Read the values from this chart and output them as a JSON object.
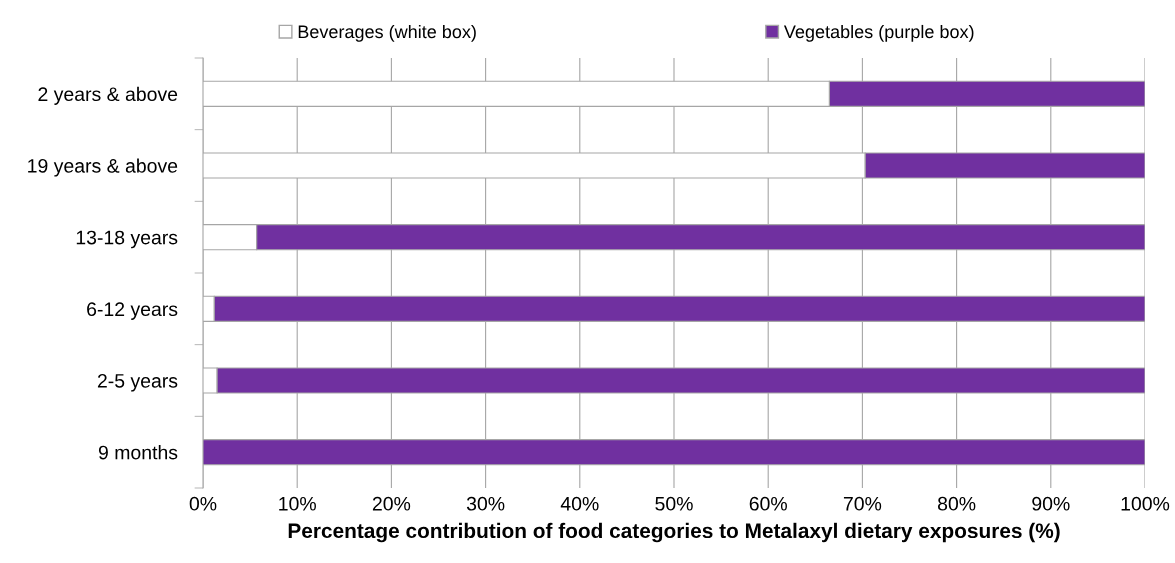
{
  "chart_data": {
    "type": "bar",
    "orientation": "horizontal",
    "stacked": true,
    "xlabel": "Percentage contribution of food categories to Metalaxyl dietary exposures (%)",
    "categories": [
      "2 years & above",
      "19 years & above",
      "13-18 years",
      "6-12 years",
      "2-5 years",
      "9 months"
    ],
    "series": [
      {
        "name": "Beverages (white box)",
        "color": "#ffffff",
        "values": [
          66.5,
          70.3,
          5.7,
          1.2,
          1.5,
          0
        ]
      },
      {
        "name": "Vegetables (purple box)",
        "color": "#7030a0",
        "values": [
          33.5,
          29.7,
          94.3,
          98.8,
          98.5,
          100
        ]
      }
    ],
    "xlim": [
      0,
      100
    ],
    "xticks": [
      {
        "value": 0,
        "label": "0%"
      },
      {
        "value": 10,
        "label": "10%"
      },
      {
        "value": 20,
        "label": "20%"
      },
      {
        "value": 30,
        "label": "30%"
      },
      {
        "value": 40,
        "label": "40%"
      },
      {
        "value": 50,
        "label": "50%"
      },
      {
        "value": 60,
        "label": "60%"
      },
      {
        "value": 70,
        "label": "70%"
      },
      {
        "value": 80,
        "label": "80%"
      },
      {
        "value": 90,
        "label": "90%"
      },
      {
        "value": 100,
        "label": "100%"
      }
    ],
    "grid": "x",
    "legend": "top"
  }
}
